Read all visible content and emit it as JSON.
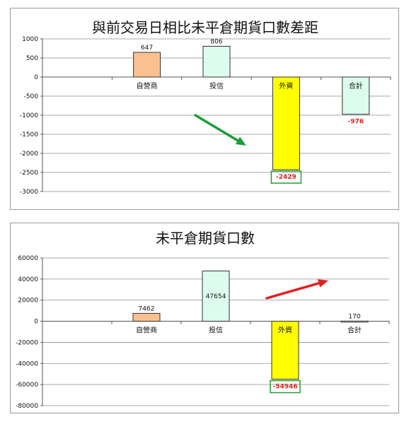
{
  "chart_data": [
    {
      "type": "bar",
      "title": "與前交易日相比未平倉期貨口數差距",
      "categories": [
        "",
        "自營商",
        "投信",
        "外資",
        "合計"
      ],
      "values": [
        null,
        647,
        806,
        -2429,
        -976
      ],
      "value_labels": [
        "",
        "647",
        "806",
        "-2429",
        "-976"
      ],
      "yticks": [
        1000,
        500,
        0,
        -500,
        -1000,
        -1500,
        -2000,
        -2500,
        -3000
      ],
      "ylim": [
        -3000,
        1000
      ],
      "bar_colors": [
        "#ffffff",
        "#f9c190",
        "#dcfcee",
        "#ffff00",
        "#dcfcee"
      ],
      "grid": true,
      "arrow_color": "#1a9e3a",
      "highlight_box_color": "#2a9a3a"
    },
    {
      "type": "bar",
      "title": "未平倉期貨口數",
      "categories": [
        "",
        "自營商",
        "投信",
        "外資",
        "合計"
      ],
      "values": [
        null,
        7462,
        47654,
        -54946,
        170
      ],
      "value_labels": [
        "",
        "7462",
        "47654",
        "-54946",
        "170"
      ],
      "yticks": [
        60000,
        40000,
        20000,
        0,
        -20000,
        -40000,
        -60000,
        -80000
      ],
      "ylim": [
        -80000,
        60000
      ],
      "bar_colors": [
        "#ffffff",
        "#f9c190",
        "#dcfcee",
        "#ffff00",
        "#dcfcee"
      ],
      "grid": true,
      "arrow_color": "#e02020",
      "highlight_box_color": "#2a9a3a"
    }
  ]
}
